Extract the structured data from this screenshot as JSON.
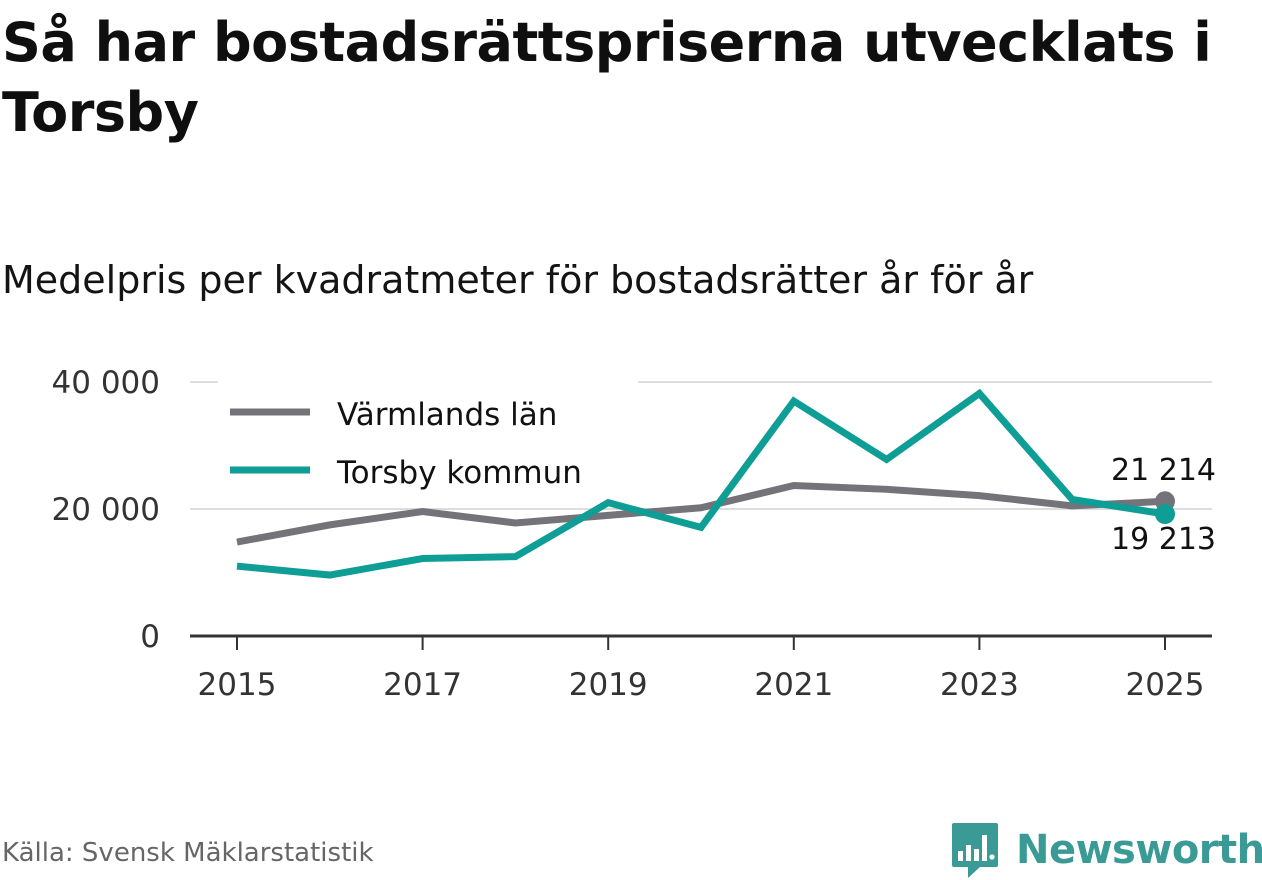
{
  "header": {
    "title": "Så har bostadsrättspriserna utvecklats i Torsby",
    "subtitle": "Medelpris per kvadratmeter för bostadsrätter år för år"
  },
  "footer": {
    "source": "Källa: Svensk Mäklarstatistik",
    "brand": "Newsworthy"
  },
  "colors": {
    "varmland": "#75737a",
    "torsby": "#0f9e96",
    "grid": "#dddddd",
    "axis": "#333333",
    "brand": "#3a9a95"
  },
  "chart_data": {
    "type": "line",
    "title": "Så har bostadsrättspriserna utvecklats i Torsby",
    "subtitle": "Medelpris per kvadratmeter för bostadsrätter år för år",
    "xlabel": "",
    "ylabel": "",
    "x": [
      2015,
      2016,
      2017,
      2018,
      2019,
      2020,
      2021,
      2022,
      2023,
      2024,
      2025
    ],
    "xlim": [
      2014.5,
      2025.5
    ],
    "ylim": [
      0,
      40000
    ],
    "yticks": [
      0,
      20000,
      40000
    ],
    "ytick_labels": [
      "0",
      "20 000",
      "40 000"
    ],
    "xticks": [
      2015,
      2017,
      2019,
      2021,
      2023,
      2025
    ],
    "xtick_labels": [
      "2015",
      "2017",
      "2019",
      "2021",
      "2023",
      "2025"
    ],
    "grid": true,
    "legend_position": "top-left",
    "series": [
      {
        "name": "Värmlands län",
        "color": "#75737a",
        "values": [
          14800,
          17500,
          19600,
          17800,
          19000,
          20200,
          23700,
          23100,
          22100,
          20500,
          21214
        ],
        "end_label": "21 214"
      },
      {
        "name": "Torsby kommun",
        "color": "#0f9e96",
        "values": [
          11000,
          9600,
          12200,
          12500,
          21000,
          17100,
          37000,
          27800,
          38200,
          21500,
          19213
        ],
        "end_label": "19 213"
      }
    ]
  }
}
